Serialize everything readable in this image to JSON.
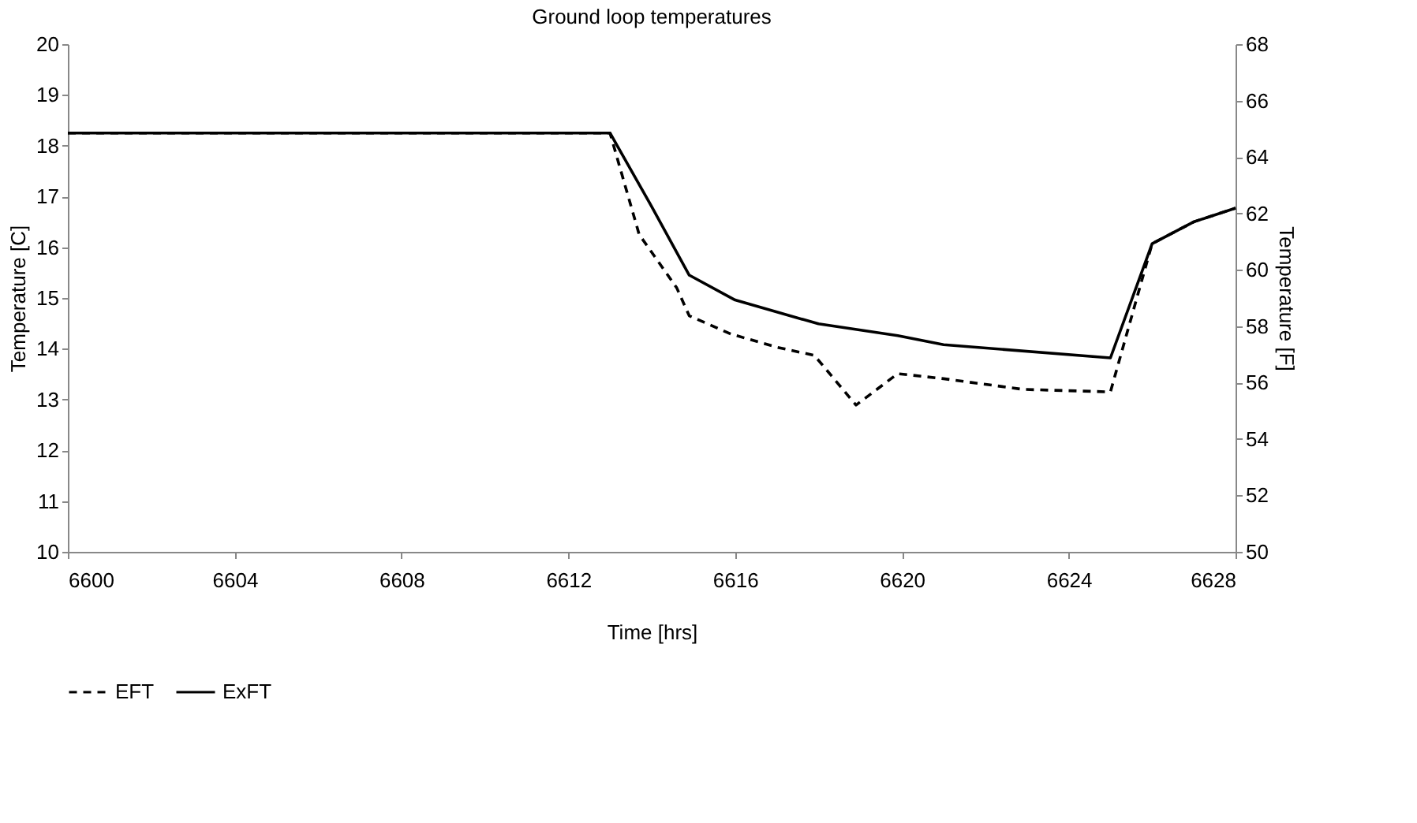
{
  "chart_data": {
    "type": "line",
    "title": "Ground loop temperatures",
    "xlabel": "Time [hrs]",
    "ylabel": "Temperature [C]",
    "y2label": "Temperature [F]",
    "xlim": [
      6600,
      6628
    ],
    "xticks": [
      6600,
      6604,
      6608,
      6612,
      6616,
      6620,
      6624,
      6628
    ],
    "ylim": [
      10,
      20
    ],
    "yticks": [
      10,
      11,
      12,
      13,
      14,
      15,
      16,
      17,
      18,
      19,
      20
    ],
    "y2lim": [
      50,
      68
    ],
    "y2ticks": [
      50,
      52,
      54,
      56,
      58,
      60,
      62,
      64,
      66,
      68
    ],
    "grid": false,
    "legend": "bottom",
    "marker": "none",
    "series": [
      {
        "name": "EFT",
        "color": "#000000",
        "line_style": "dashed",
        "x": [
          6600,
          6613,
          6613.7,
          6614.6,
          6614.9,
          6615.9,
          6617,
          6617.9,
          6618.9,
          6619.9,
          6621,
          6622.9,
          6625,
          6626,
          6627,
          6628
        ],
        "values": [
          18.25,
          18.25,
          16.25,
          15.2,
          14.65,
          14.29,
          14.03,
          13.87,
          12.89,
          13.51,
          13.41,
          13.2,
          13.15,
          16.07,
          16.5,
          16.77
        ]
      },
      {
        "name": "ExFT",
        "color": "#000000",
        "line_style": "solid",
        "x": [
          6600,
          6613,
          6614,
          6614.9,
          6616,
          6618,
          6619.9,
          6621,
          6625,
          6626,
          6627,
          6628
        ],
        "values": [
          18.25,
          18.25,
          16.8,
          15.45,
          14.96,
          14.49,
          14.26,
          14.08,
          13.82,
          16.07,
          16.5,
          16.77
        ]
      }
    ]
  }
}
